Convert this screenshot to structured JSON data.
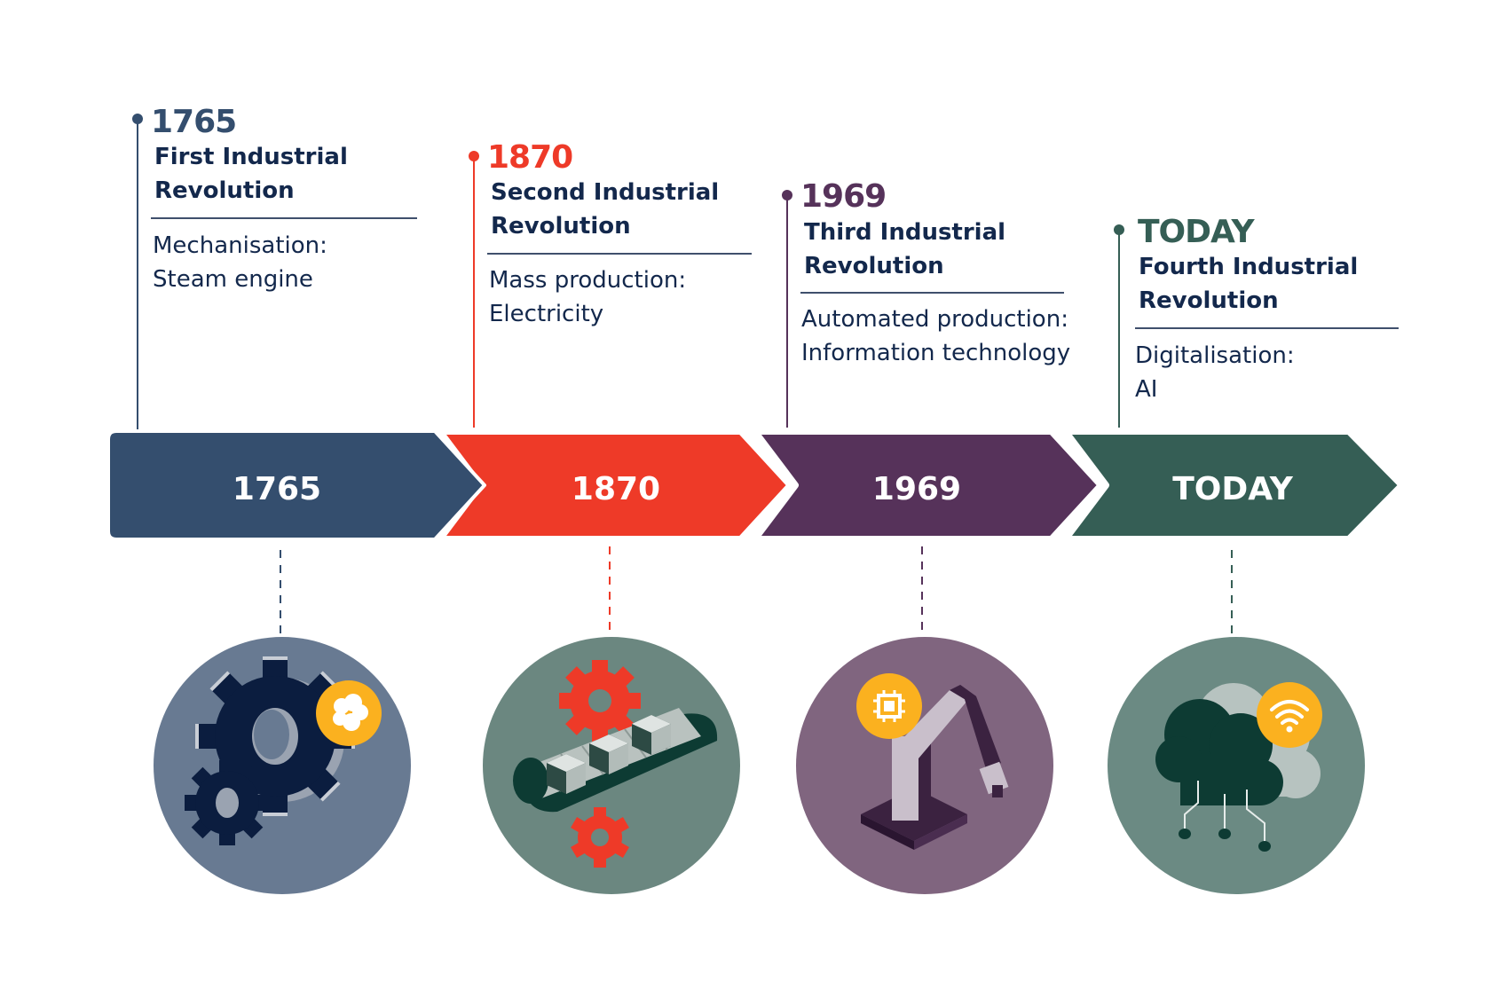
{
  "milestones": [
    {
      "year": "1765",
      "title_line1": "First Industrial",
      "title_line2": "Revolution",
      "desc_line1": "Mechanisation:",
      "desc_line2": "Steam engine",
      "color": "#344e6e",
      "circle_color": "#687a92",
      "icon": "gears-steam-icon"
    },
    {
      "year": "1870",
      "title_line1": "Second Industrial",
      "title_line2": "Revolution",
      "desc_line1": "Mass production:",
      "desc_line2": "Electricity",
      "color": "#ee3a28",
      "circle_color": "#6b8780",
      "icon": "conveyor-belt-icon"
    },
    {
      "year": "1969",
      "title_line1": "Third Industrial",
      "title_line2": "Revolution",
      "desc_line1": "Automated production:",
      "desc_line2": "Information technology",
      "color": "#56325a",
      "circle_color": "#80657f",
      "icon": "robot-arm-chip-icon"
    },
    {
      "year": "TODAY",
      "title_line1": "Fourth Industrial",
      "title_line2": "Revolution",
      "desc_line1": "Digitalisation:",
      "desc_line2": "AI",
      "color": "#355e55",
      "circle_color": "#6b8a83",
      "icon": "cloud-wifi-icon"
    }
  ],
  "bar_labels": [
    "1765",
    "1870",
    "1969",
    "TODAY"
  ],
  "accent_icon_color": "#fbb11f"
}
